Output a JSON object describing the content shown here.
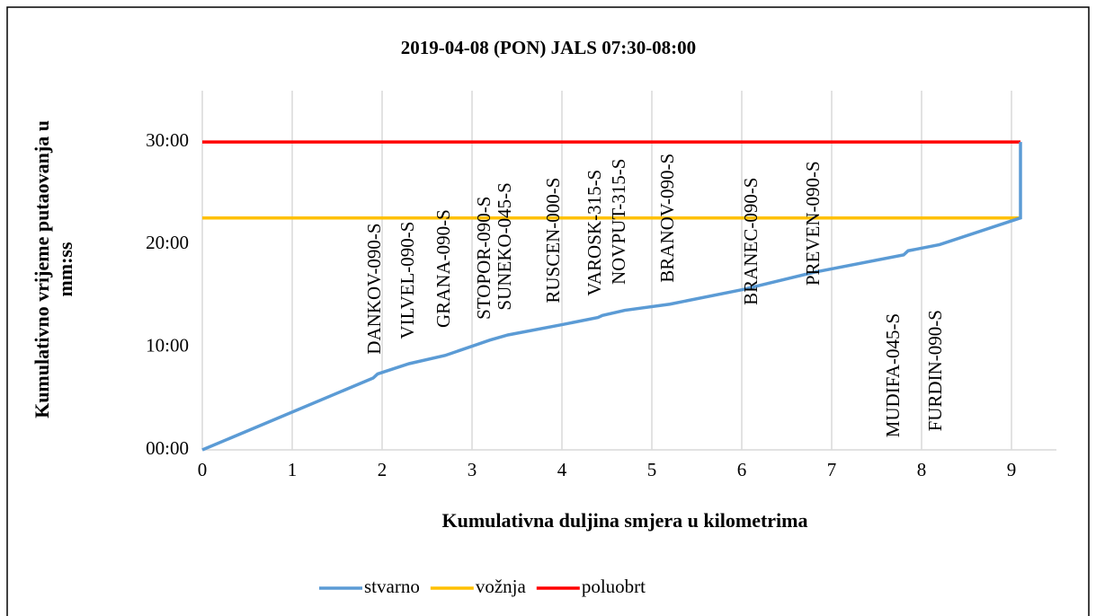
{
  "chart_data": {
    "type": "line",
    "title": "2019-04-08 (PON) JALS 07:30-08:00",
    "x_label": "Kumulativna duljina smjera u kilometrima",
    "y_label": "Kumulativno vrijeme putaovanja u mm:ss",
    "xlim": [
      0,
      9.5
    ],
    "xticks": [
      0,
      1,
      2,
      3,
      4,
      5,
      6,
      7,
      8,
      9
    ],
    "ylim": [
      0,
      35
    ],
    "yticks": [
      {
        "value": 0,
        "label": "00:00"
      },
      {
        "value": 10,
        "label": "10:00"
      },
      {
        "value": 20,
        "label": "20:00"
      },
      {
        "value": 30,
        "label": "30:00"
      }
    ],
    "grid": "x",
    "legend": "bottom",
    "series": [
      {
        "name": "stvarno",
        "color": "#5b9bd5",
        "x": [
          0,
          1.9,
          1.95,
          2.3,
          2.7,
          3.2,
          3.4,
          4,
          4.4,
          4.45,
          4.7,
          5.2,
          6,
          6.8,
          7.8,
          7.85,
          8.2,
          9.1,
          9.1
        ],
        "values": [
          0,
          7.0,
          7.4,
          8.4,
          9.2,
          10.7,
          11.2,
          12.2,
          12.9,
          13.1,
          13.6,
          14.2,
          15.6,
          17.3,
          19.0,
          19.4,
          20.0,
          22.6,
          30
        ]
      },
      {
        "name": "vožnja",
        "color": "#ffc000",
        "x": [
          0,
          9.1
        ],
        "values": [
          22.6,
          22.6
        ]
      },
      {
        "name": "poluobrt",
        "color": "#ff0000",
        "x": [
          0,
          9.1
        ],
        "values": [
          30,
          30
        ]
      }
    ],
    "annotations": [
      {
        "text": "DANKOV-090-S",
        "x": 1.93,
        "y": 9.3
      },
      {
        "text": "VILVEL-090-S",
        "x": 2.3,
        "y": 10.8
      },
      {
        "text": "GRANA-090-S",
        "x": 2.7,
        "y": 11.9
      },
      {
        "text": "STOPOR-090-S",
        "x": 3.15,
        "y": 12.7
      },
      {
        "text": "SUNEKO-045-S",
        "x": 3.38,
        "y": 13.6
      },
      {
        "text": "RUSCEN-000-S",
        "x": 3.92,
        "y": 14.3
      },
      {
        "text": "VAROSK-315-S",
        "x": 4.38,
        "y": 15.0
      },
      {
        "text": "NOVPUT-315-S",
        "x": 4.65,
        "y": 16.1
      },
      {
        "text": "BRANOV-090-S",
        "x": 5.19,
        "y": 16.3
      },
      {
        "text": "BRANEC-090-S",
        "x": 6.12,
        "y": 14.1
      },
      {
        "text": "PREVEN-090-S",
        "x": 6.81,
        "y": 16.0
      },
      {
        "text": "MUDIFA-045-S",
        "x": 7.7,
        "y": 1.2
      },
      {
        "text": "FURDIN-090-S",
        "x": 8.17,
        "y": 1.8
      }
    ]
  }
}
